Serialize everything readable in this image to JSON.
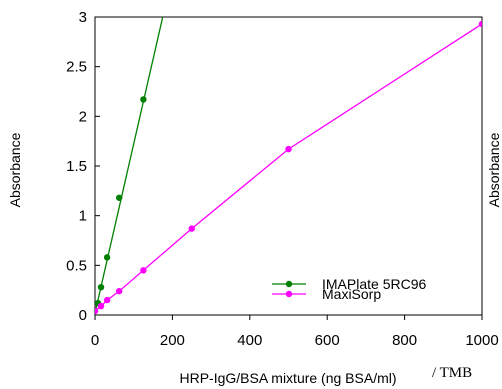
{
  "chart_data": {
    "type": "line",
    "title": "",
    "xlabel": "HRP-IgG/BSA mixture (ng BSA/ml)",
    "ylabel": "Absorbance",
    "xlim": [
      0,
      1000
    ],
    "ylim": [
      0,
      3
    ],
    "x_ticks": [
      0,
      200,
      400,
      600,
      800,
      1000
    ],
    "y_ticks": [
      0,
      0.5,
      1,
      1.5,
      2,
      2.5,
      3
    ],
    "y_tick_labels": [
      "0",
      "0.5",
      "1",
      "1.5",
      "2",
      "2.5",
      "3"
    ],
    "grid": false,
    "legend_position": "bottom-right",
    "series": [
      {
        "name": "IMAPlate 5RC96",
        "color": "#008000",
        "x": [
          0,
          7.8,
          15.6,
          31.25,
          62.5,
          125
        ],
        "y": [
          0.04,
          0.12,
          0.28,
          0.58,
          1.18,
          2.17
        ],
        "fit_x": [
          0,
          175
        ],
        "fit_y": [
          0.02,
          3.0
        ]
      },
      {
        "name": "MaxiSorp",
        "color": "#ff00ff",
        "x": [
          0,
          15.6,
          31.25,
          62.5,
          125,
          250,
          500,
          1000
        ],
        "y": [
          0.04,
          0.09,
          0.15,
          0.24,
          0.45,
          0.87,
          1.67,
          2.93
        ]
      }
    ]
  },
  "annotations": {
    "right_edge_ylabel_fragment": "Absorbance",
    "tmb_label": "/ TMB"
  }
}
